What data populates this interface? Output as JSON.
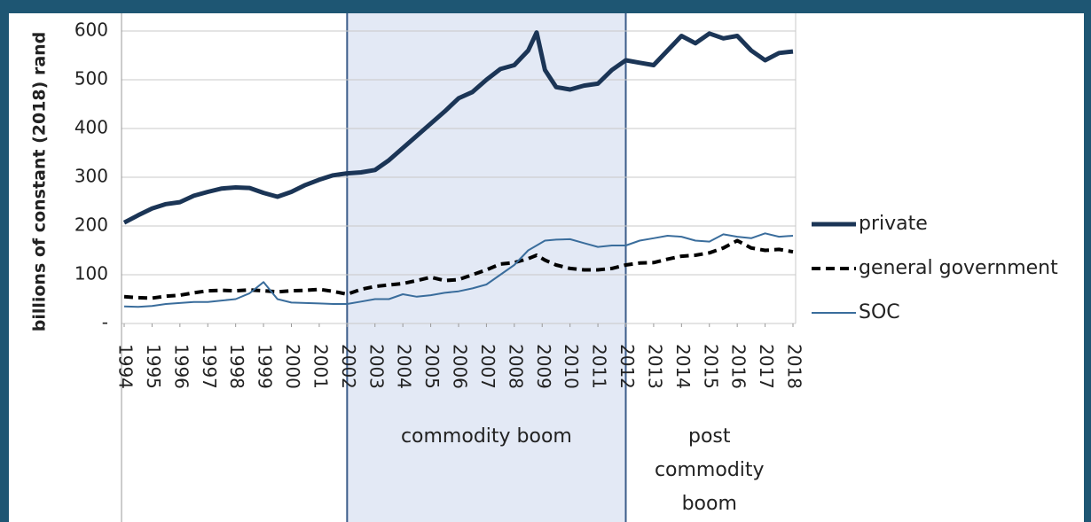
{
  "chart_data": {
    "type": "line",
    "ylabel": "billions of constant (2018) rand",
    "x": [
      1994,
      1994.5,
      1995,
      1995.5,
      1996,
      1996.5,
      1997,
      1997.5,
      1998,
      1998.5,
      1999,
      1999.5,
      2000,
      2000.5,
      2001,
      2001.5,
      2002,
      2002.5,
      2003,
      2003.5,
      2004,
      2004.5,
      2005,
      2005.5,
      2006,
      2006.5,
      2007,
      2007.5,
      2008,
      2008.5,
      2008.8,
      2009.1,
      2009.5,
      2010,
      2010.5,
      2011,
      2011.5,
      2012,
      2012.5,
      2013,
      2013.5,
      2014,
      2014.5,
      2015,
      2015.5,
      2016,
      2016.5,
      2017,
      2017.5,
      2018
    ],
    "xlim": [
      1994,
      2018
    ],
    "xticks": [
      1994,
      1995,
      1996,
      1997,
      1998,
      1999,
      2000,
      2001,
      2002,
      2003,
      2004,
      2005,
      2006,
      2007,
      2008,
      2009,
      2010,
      2011,
      2012,
      2013,
      2014,
      2015,
      2016,
      2017,
      2018
    ],
    "ylim": [
      0,
      600
    ],
    "yticks": [
      {
        "value": 0,
        "label": "-"
      },
      100,
      200,
      300,
      400,
      500,
      600
    ],
    "grid": true,
    "series": [
      {
        "name": "private",
        "color": "#1b3556",
        "style": "solid",
        "width": 5,
        "values": [
          207,
          222,
          236,
          245,
          249,
          262,
          270,
          277,
          279,
          278,
          268,
          260,
          270,
          284,
          295,
          304,
          308,
          310,
          315,
          335,
          360,
          385,
          410,
          435,
          462,
          475,
          500,
          522,
          530,
          560,
          597,
          520,
          485,
          480,
          488,
          492,
          520,
          540,
          535,
          530,
          560,
          590,
          575,
          595,
          585,
          590,
          560,
          540,
          555,
          558
        ]
      },
      {
        "name": "general government",
        "color": "#000000",
        "style": "dashed",
        "width": 4,
        "values": [
          55,
          53,
          52,
          56,
          58,
          63,
          67,
          68,
          67,
          69,
          67,
          65,
          67,
          68,
          70,
          66,
          60,
          70,
          76,
          79,
          82,
          88,
          95,
          88,
          90,
          100,
          110,
          122,
          125,
          133,
          140,
          130,
          120,
          113,
          110,
          110,
          113,
          120,
          124,
          125,
          132,
          138,
          140,
          145,
          155,
          170,
          155,
          150,
          152,
          147
        ]
      },
      {
        "name": "SOC",
        "color": "#3a6d9c",
        "style": "solid",
        "width": 2,
        "values": [
          35,
          34,
          36,
          40,
          42,
          44,
          44,
          47,
          50,
          62,
          85,
          50,
          43,
          42,
          41,
          40,
          40,
          45,
          50,
          50,
          60,
          55,
          58,
          63,
          66,
          72,
          80,
          100,
          120,
          150,
          160,
          170,
          172,
          173,
          165,
          157,
          160,
          160,
          170,
          175,
          180,
          178,
          170,
          168,
          183,
          178,
          175,
          185,
          178,
          180
        ]
      }
    ],
    "regions": [
      {
        "start": 2002,
        "end": 2012,
        "label": "commodity boom",
        "shaded": true
      },
      {
        "start": 2012,
        "end": 2018,
        "label": "post commodity boom",
        "shaded": false
      }
    ]
  }
}
